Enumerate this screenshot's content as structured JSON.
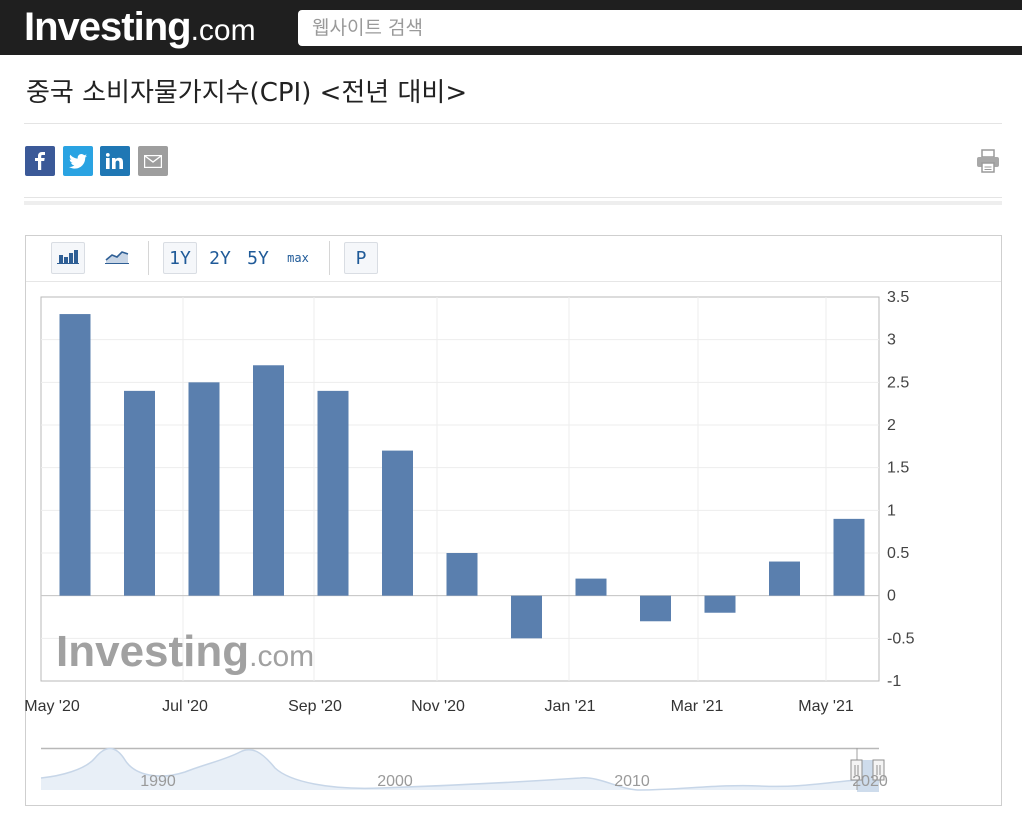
{
  "header": {
    "logo_main": "Investing",
    "logo_suffix": ".com",
    "search_placeholder": "웹사이트 검색"
  },
  "page": {
    "title": "중국 소비자물가지수(CPI) <전년 대비>"
  },
  "share_icons": [
    "facebook-icon",
    "twitter-icon",
    "linkedin-icon",
    "email-icon"
  ],
  "colors": {
    "bar": "#5a7fae",
    "topbar": "#1f1f1f",
    "facebook": "#3b5998",
    "twitter": "#2aa3e2",
    "linkedin": "#1f77b4",
    "email": "#9e9e9e"
  },
  "toolbar": {
    "ranges": [
      "1Y",
      "2Y",
      "5Y",
      "max"
    ],
    "active_range": "1Y",
    "p_label": "P"
  },
  "chart_data": {
    "type": "bar",
    "categories": [
      "May '20",
      "Jun '20",
      "Jul '20",
      "Aug '20",
      "Sep '20",
      "Oct '20",
      "Nov '20",
      "Dec '20",
      "Jan '21",
      "Feb '21",
      "Mar '21",
      "Apr '21",
      "May '21"
    ],
    "values": [
      3.3,
      2.4,
      2.5,
      2.7,
      2.4,
      1.7,
      0.5,
      -0.5,
      0.2,
      -0.3,
      -0.2,
      0.4,
      0.9
    ],
    "x_tick_labels": [
      "May '20",
      "Jul '20",
      "Sep '20",
      "Nov '20",
      "Jan '21",
      "Mar '21",
      "May '21"
    ],
    "y_ticks": [
      "3.5",
      "3",
      "2.5",
      "2",
      "1.5",
      "1",
      "0.5",
      "0",
      "-0.5",
      "-1"
    ],
    "ylim": [
      -1,
      3.5
    ],
    "y_axis_side": "right",
    "grid": true,
    "watermark": "Investing.com",
    "navigator_labels": [
      "1990",
      "2000",
      "2010",
      "2020"
    ]
  }
}
